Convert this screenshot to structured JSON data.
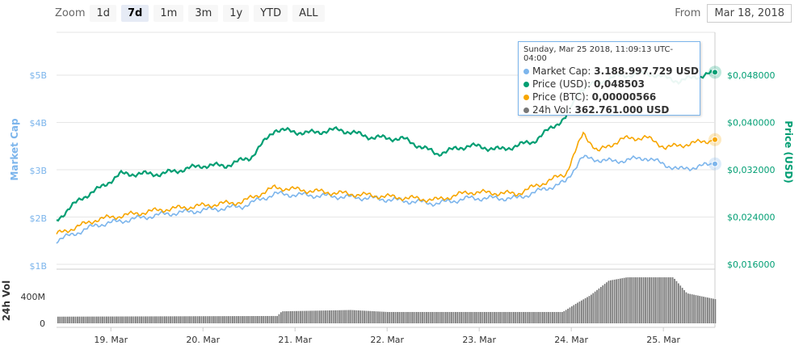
{
  "toolbar": {
    "zoom_label": "Zoom",
    "buttons": [
      "1d",
      "7d",
      "1m",
      "3m",
      "1y",
      "YTD",
      "ALL"
    ],
    "active": "7d",
    "from_label": "From",
    "from_value": "Mar 18, 2018"
  },
  "tooltip": {
    "title": "Sunday, Mar 25 2018, 11:09:13 UTC-04:00",
    "rows": [
      {
        "label": "Market Cap:",
        "value": "3.188.997.729 USD",
        "color": "#7cb5ec"
      },
      {
        "label": "Price (USD):",
        "value": "0,048503",
        "color": "#009e73"
      },
      {
        "label": "Price (BTC):",
        "value": "0,00000566",
        "color": "#f7a600"
      },
      {
        "label": "24h Vol:",
        "value": "362.761.000 USD",
        "color": "#777777"
      }
    ]
  },
  "chart_data": {
    "type": "line",
    "left_axis": {
      "title": "Market Cap",
      "ticks": [
        "$1B",
        "$2B",
        "$3B",
        "$4B",
        "$5B"
      ],
      "values": [
        1,
        2,
        3,
        4,
        5
      ],
      "color": "#7cb5ec"
    },
    "right_axis": {
      "title": "Price (USD)",
      "ticks": [
        "$0,016000",
        "$0,024000",
        "$0,032000",
        "$0,040000",
        "$0,048000"
      ],
      "values": [
        0.016,
        0.024,
        0.032,
        0.04,
        0.048
      ],
      "color": "#009e73"
    },
    "volume_axis": {
      "title": "24h Vol",
      "ticks": [
        "0",
        "400M"
      ],
      "values": [
        0,
        400
      ]
    },
    "x_ticks": [
      "19. Mar",
      "20. Mar",
      "21. Mar",
      "22. Mar",
      "23. Mar",
      "24. Mar",
      "25. Mar"
    ],
    "x_tick_values": [
      19,
      20,
      21,
      22,
      23,
      24,
      25
    ],
    "xlim": [
      18.41,
      25.56
    ],
    "series": [
      {
        "name": "Price (USD)",
        "color": "#009e73",
        "x": [
          18.41,
          18.68,
          18.85,
          19.11,
          19.55,
          19.99,
          20.25,
          20.52,
          20.78,
          21.13,
          21.48,
          21.83,
          22.18,
          22.54,
          22.89,
          23.24,
          23.59,
          23.94,
          24.11,
          24.46,
          24.81,
          25.17,
          25.56
        ],
        "y": [
          0.0235,
          0.0272,
          0.0286,
          0.0313,
          0.0313,
          0.0327,
          0.0327,
          0.0341,
          0.0388,
          0.0382,
          0.0388,
          0.0375,
          0.0372,
          0.0347,
          0.0361,
          0.0354,
          0.0368,
          0.0409,
          0.0457,
          0.0477,
          0.0484,
          0.047,
          0.0485
        ]
      },
      {
        "name": "Market Cap (B USD)",
        "color": "#7cb5ec",
        "x": [
          18.41,
          18.85,
          19.55,
          20.43,
          20.78,
          21.31,
          21.83,
          22.54,
          22.89,
          23.41,
          23.94,
          24.11,
          24.46,
          24.81,
          25.17,
          25.56
        ],
        "y": [
          1.53,
          1.86,
          2.08,
          2.25,
          2.51,
          2.47,
          2.42,
          2.31,
          2.42,
          2.42,
          2.76,
          3.27,
          3.19,
          3.27,
          3.02,
          3.14
        ]
      },
      {
        "name": "Price (BTC, satoshi)",
        "color": "#f7a600",
        "ylim": [
          343,
          679
        ],
        "x": [
          18.41,
          18.85,
          19.55,
          20.43,
          20.78,
          21.31,
          21.83,
          22.54,
          22.89,
          23.41,
          23.94,
          24.13,
          24.29,
          24.55,
          24.81,
          25.03,
          25.56
        ],
        "y": [
          400,
          426,
          443,
          457,
          482,
          474,
          468,
          460,
          474,
          471,
          506,
          577,
          545,
          567,
          570,
          552,
          566
        ]
      },
      {
        "name": "24h Vol (M USD)",
        "color": "#777777",
        "x": [
          18.41,
          20.8,
          20.85,
          21.6,
          22.0,
          23.9,
          24.05,
          24.2,
          24.4,
          24.6,
          25.1,
          25.25,
          25.56
        ],
        "y": [
          100,
          110,
          180,
          200,
          170,
          170,
          300,
          420,
          640,
          690,
          690,
          450,
          362
        ]
      }
    ]
  }
}
